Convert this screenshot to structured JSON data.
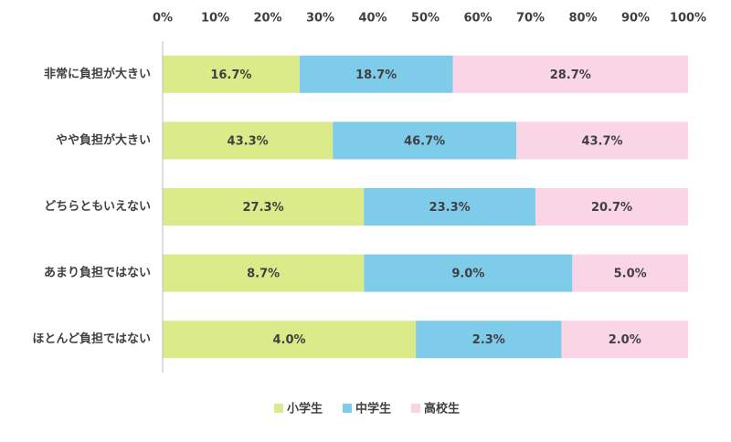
{
  "chart_data": {
    "type": "bar",
    "orientation": "horizontal",
    "stack": "percent",
    "categories": [
      "非常に負担が大きい",
      "やや負担が大きい",
      "どちらともいえない",
      "あまり負担ではない",
      "ほとんど負担ではない"
    ],
    "series": [
      {
        "name": "小学生",
        "color": "#dbeb8a",
        "values": [
          16.7,
          43.3,
          27.3,
          8.7,
          4.0
        ],
        "value_labels": [
          "16.7%",
          "43.3%",
          "27.3%",
          "8.7%",
          "4.0%"
        ]
      },
      {
        "name": "中学生",
        "color": "#7ecbea",
        "values": [
          18.7,
          46.7,
          23.3,
          9.0,
          2.3
        ],
        "value_labels": [
          "18.7%",
          "46.7%",
          "23.3%",
          "9.0%",
          "2.3%"
        ]
      },
      {
        "name": "高校生",
        "color": "#f9d5e5",
        "values": [
          28.7,
          43.7,
          20.7,
          5.0,
          2.0
        ],
        "value_labels": [
          "28.7%",
          "43.7%",
          "20.7%",
          "5.0%",
          "2.0%"
        ]
      }
    ],
    "xlim": [
      0,
      100
    ],
    "xticks": [
      {
        "value": 0,
        "label": "0%"
      },
      {
        "value": 10,
        "label": "10%"
      },
      {
        "value": 20,
        "label": "20%"
      },
      {
        "value": 30,
        "label": "30%"
      },
      {
        "value": 40,
        "label": "40%"
      },
      {
        "value": 50,
        "label": "50%"
      },
      {
        "value": 60,
        "label": "60%"
      },
      {
        "value": 70,
        "label": "70%"
      },
      {
        "value": 80,
        "label": "80%"
      },
      {
        "value": 90,
        "label": "90%"
      },
      {
        "value": 100,
        "label": "100%"
      }
    ],
    "grid": false,
    "legend": "bottom"
  }
}
